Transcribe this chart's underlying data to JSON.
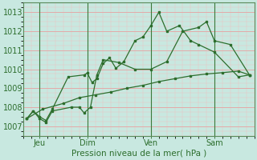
{
  "bg_color": "#c8e8e0",
  "plot_bg_color": "#c8e8e0",
  "line_color": "#2d6e2d",
  "title": "Pression niveau de la mer( hPa )",
  "yticks": [
    1007,
    1008,
    1009,
    1010,
    1011,
    1012,
    1013
  ],
  "ylim": [
    1006.5,
    1013.5
  ],
  "xtick_labels": [
    "Jeu",
    "Dim",
    "Ven",
    "Sam"
  ],
  "xtick_positions": [
    1,
    4,
    8,
    12
  ],
  "vline_positions": [
    1,
    4,
    8,
    12
  ],
  "x_total": 14.5,
  "xlim": [
    0,
    14.5
  ],
  "series1_x": [
    0.2,
    0.6,
    1.0,
    1.4,
    1.8,
    2.8,
    3.8,
    4.0,
    4.3,
    4.6,
    5.0,
    5.4,
    5.8,
    6.3,
    7.0,
    7.5,
    8.0,
    8.5,
    9.0,
    9.8,
    10.5,
    11.0,
    12.0,
    13.5,
    14.2
  ],
  "series1_y": [
    1007.4,
    1007.8,
    1007.5,
    1007.3,
    1007.9,
    1009.6,
    1009.7,
    1009.8,
    1009.3,
    1009.5,
    1010.3,
    1010.6,
    1010.05,
    1010.4,
    1011.5,
    1011.7,
    1012.3,
    1013.0,
    1012.0,
    1012.3,
    1011.5,
    1011.3,
    1010.9,
    1009.6,
    1009.7
  ],
  "series2_x": [
    0.2,
    0.6,
    1.0,
    1.4,
    1.8,
    3.0,
    3.5,
    3.8,
    4.2,
    4.6,
    5.0,
    6.0,
    7.0,
    8.0,
    9.0,
    10.0,
    11.0,
    11.5,
    12.0,
    13.0,
    14.2
  ],
  "series2_y": [
    1007.4,
    1007.8,
    1007.4,
    1007.2,
    1007.8,
    1008.0,
    1008.0,
    1007.7,
    1008.0,
    1009.7,
    1010.5,
    1010.35,
    1010.0,
    1010.0,
    1010.4,
    1012.0,
    1012.2,
    1012.5,
    1011.5,
    1011.3,
    1009.7
  ],
  "series3_x": [
    0.2,
    1.2,
    2.5,
    3.5,
    4.5,
    5.5,
    6.5,
    7.5,
    8.5,
    9.5,
    10.5,
    11.5,
    12.5,
    13.5,
    14.2
  ],
  "series3_y": [
    1007.4,
    1007.9,
    1008.2,
    1008.5,
    1008.65,
    1008.8,
    1009.0,
    1009.15,
    1009.35,
    1009.5,
    1009.65,
    1009.75,
    1009.82,
    1009.9,
    1009.7
  ]
}
